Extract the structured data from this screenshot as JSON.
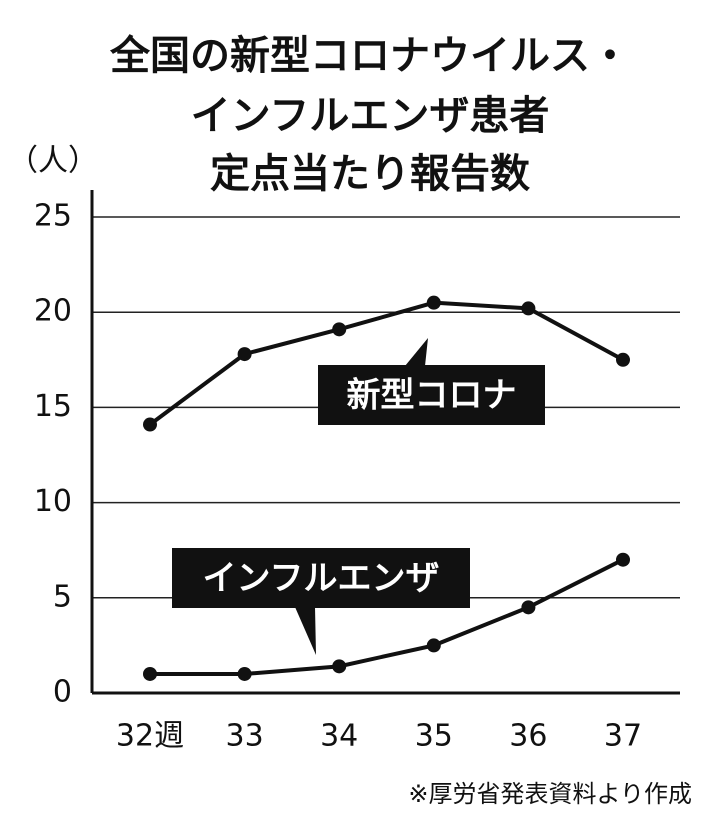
{
  "chart_data": {
    "type": "line",
    "title": [
      "全国の新型コロナウイルス・",
      "インフルエンザ患者",
      "定点当たり報告数"
    ],
    "y_label": "（人）",
    "categories": [
      "32週",
      "33",
      "34",
      "35",
      "36",
      "37"
    ],
    "series": [
      {
        "name": "新型コロナ",
        "color": "#111111",
        "values": [
          14.1,
          17.8,
          19.1,
          20.5,
          20.2,
          17.5
        ]
      },
      {
        "name": "インフルエンザ",
        "color": "#111111",
        "values": [
          1.0,
          1.0,
          1.4,
          2.5,
          4.5,
          7.0
        ]
      }
    ],
    "ylim": [
      0,
      25
    ],
    "yticks": [
      0,
      5,
      10,
      15,
      20,
      25
    ],
    "grid": true,
    "source": "※厚労省発表資料より作成"
  }
}
